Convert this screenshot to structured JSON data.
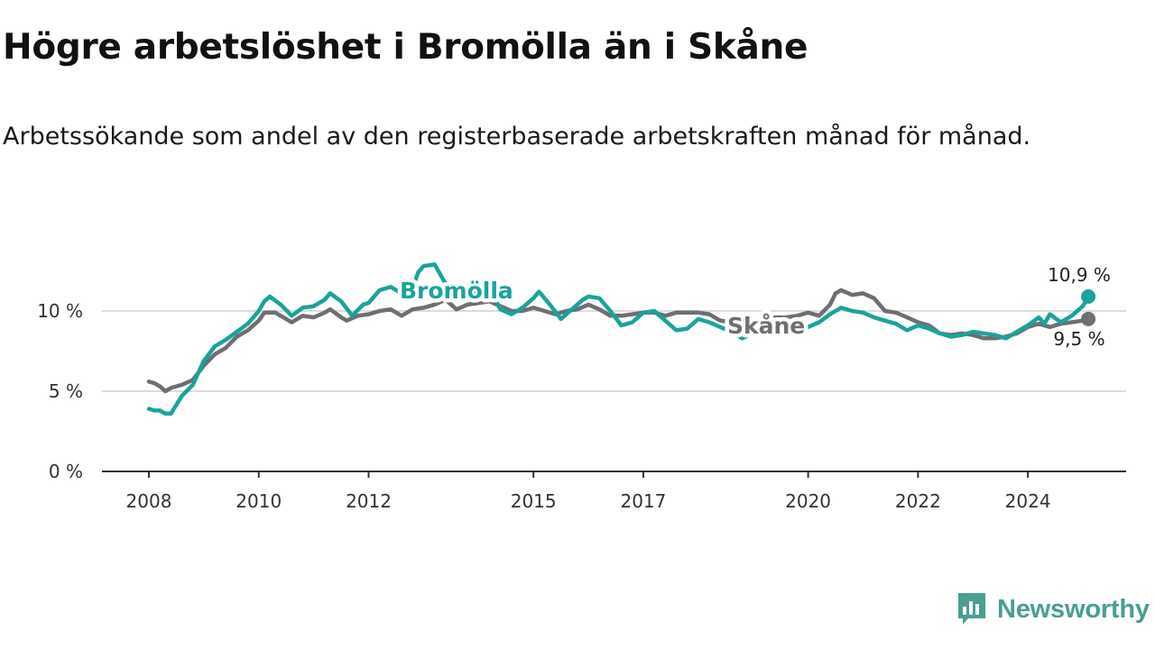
{
  "title": "Högre arbetslöshet i Bromölla än i Skåne",
  "subtitle": "Arbetssökande som andel av den registerbaserade arbetskraften månad för månad.",
  "brand": {
    "name": "Newsworthy",
    "color": "#4a9e92",
    "icon": "newsworthy-logo-icon"
  },
  "chart_data": {
    "type": "line",
    "title": "Högre arbetslöshet i Bromölla än i Skåne",
    "subtitle": "Arbetssökande som andel av den registerbaserade arbetskraften månad för månad.",
    "xlabel": "",
    "ylabel": "",
    "x_range": [
      2008,
      2025.7
    ],
    "ylim": [
      0,
      12
    ],
    "x_ticks": [
      {
        "value": 2008,
        "label": "2008"
      },
      {
        "value": 2010,
        "label": "2010"
      },
      {
        "value": 2012,
        "label": "2012"
      },
      {
        "value": 2015,
        "label": "2015"
      },
      {
        "value": 2017,
        "label": "2017"
      },
      {
        "value": 2020,
        "label": "2020"
      },
      {
        "value": 2022,
        "label": "2022"
      },
      {
        "value": 2024,
        "label": "2024"
      }
    ],
    "y_ticks": [
      {
        "value": 0,
        "label": "0 %"
      },
      {
        "value": 5,
        "label": "5 %"
      },
      {
        "value": 10,
        "label": "10 %"
      }
    ],
    "grid": true,
    "series": [
      {
        "name": "Skåne",
        "color": "#6e6e73",
        "end_label": "9,5 %",
        "points": [
          [
            2008.0,
            5.6
          ],
          [
            2008.1,
            5.5
          ],
          [
            2008.2,
            5.3
          ],
          [
            2008.3,
            5.0
          ],
          [
            2008.4,
            5.2
          ],
          [
            2008.6,
            5.4
          ],
          [
            2008.8,
            5.7
          ],
          [
            2009.0,
            6.6
          ],
          [
            2009.2,
            7.3
          ],
          [
            2009.4,
            7.7
          ],
          [
            2009.6,
            8.4
          ],
          [
            2009.8,
            8.8
          ],
          [
            2010.0,
            9.4
          ],
          [
            2010.1,
            9.9
          ],
          [
            2010.3,
            9.9
          ],
          [
            2010.5,
            9.5
          ],
          [
            2010.6,
            9.3
          ],
          [
            2010.8,
            9.7
          ],
          [
            2011.0,
            9.6
          ],
          [
            2011.2,
            9.9
          ],
          [
            2011.3,
            10.1
          ],
          [
            2011.5,
            9.6
          ],
          [
            2011.6,
            9.4
          ],
          [
            2011.8,
            9.7
          ],
          [
            2012.0,
            9.8
          ],
          [
            2012.2,
            10.0
          ],
          [
            2012.4,
            10.1
          ],
          [
            2012.6,
            9.7
          ],
          [
            2012.8,
            10.1
          ],
          [
            2013.0,
            10.2
          ],
          [
            2013.2,
            10.4
          ],
          [
            2013.4,
            10.7
          ],
          [
            2013.6,
            10.1
          ],
          [
            2013.8,
            10.4
          ],
          [
            2014.0,
            10.5
          ],
          [
            2014.2,
            10.6
          ],
          [
            2014.4,
            10.3
          ],
          [
            2014.6,
            10.0
          ],
          [
            2014.8,
            10.0
          ],
          [
            2015.0,
            10.2
          ],
          [
            2015.2,
            10.0
          ],
          [
            2015.4,
            9.8
          ],
          [
            2015.6,
            10.0
          ],
          [
            2015.8,
            10.1
          ],
          [
            2016.0,
            10.4
          ],
          [
            2016.2,
            10.1
          ],
          [
            2016.4,
            9.7
          ],
          [
            2016.6,
            9.7
          ],
          [
            2016.8,
            9.8
          ],
          [
            2017.0,
            9.9
          ],
          [
            2017.2,
            9.9
          ],
          [
            2017.4,
            9.7
          ],
          [
            2017.6,
            9.9
          ],
          [
            2017.8,
            9.9
          ],
          [
            2018.0,
            9.9
          ],
          [
            2018.2,
            9.8
          ],
          [
            2018.4,
            9.4
          ],
          [
            2018.6,
            9.3
          ],
          [
            2018.8,
            9.4
          ],
          [
            2019.0,
            9.3
          ],
          [
            2019.2,
            9.4
          ],
          [
            2019.4,
            9.6
          ],
          [
            2019.6,
            9.6
          ],
          [
            2019.8,
            9.7
          ],
          [
            2020.0,
            9.9
          ],
          [
            2020.2,
            9.7
          ],
          [
            2020.4,
            10.4
          ],
          [
            2020.5,
            11.1
          ],
          [
            2020.6,
            11.3
          ],
          [
            2020.8,
            11.0
          ],
          [
            2021.0,
            11.1
          ],
          [
            2021.2,
            10.8
          ],
          [
            2021.4,
            10.0
          ],
          [
            2021.6,
            9.9
          ],
          [
            2021.8,
            9.6
          ],
          [
            2022.0,
            9.3
          ],
          [
            2022.2,
            9.1
          ],
          [
            2022.4,
            8.6
          ],
          [
            2022.6,
            8.5
          ],
          [
            2022.8,
            8.6
          ],
          [
            2023.0,
            8.5
          ],
          [
            2023.2,
            8.3
          ],
          [
            2023.4,
            8.3
          ],
          [
            2023.6,
            8.4
          ],
          [
            2023.8,
            8.6
          ],
          [
            2024.0,
            9.0
          ],
          [
            2024.2,
            9.2
          ],
          [
            2024.4,
            9.0
          ],
          [
            2024.6,
            9.2
          ],
          [
            2024.8,
            9.3
          ],
          [
            2025.0,
            9.4
          ],
          [
            2025.1,
            9.5
          ]
        ]
      },
      {
        "name": "Bromölla",
        "color": "#1aa39a",
        "end_label": "10,9 %",
        "points": [
          [
            2008.0,
            3.9
          ],
          [
            2008.1,
            3.8
          ],
          [
            2008.2,
            3.8
          ],
          [
            2008.3,
            3.6
          ],
          [
            2008.4,
            3.6
          ],
          [
            2008.6,
            4.7
          ],
          [
            2008.8,
            5.4
          ],
          [
            2009.0,
            6.9
          ],
          [
            2009.2,
            7.8
          ],
          [
            2009.4,
            8.2
          ],
          [
            2009.6,
            8.7
          ],
          [
            2009.8,
            9.2
          ],
          [
            2010.0,
            10.0
          ],
          [
            2010.1,
            10.6
          ],
          [
            2010.2,
            10.9
          ],
          [
            2010.4,
            10.4
          ],
          [
            2010.6,
            9.7
          ],
          [
            2010.8,
            10.2
          ],
          [
            2011.0,
            10.3
          ],
          [
            2011.2,
            10.7
          ],
          [
            2011.3,
            11.1
          ],
          [
            2011.5,
            10.6
          ],
          [
            2011.7,
            9.7
          ],
          [
            2011.9,
            10.4
          ],
          [
            2012.0,
            10.5
          ],
          [
            2012.2,
            11.3
          ],
          [
            2012.4,
            11.5
          ],
          [
            2012.6,
            11.1
          ],
          [
            2012.8,
            11.4
          ],
          [
            2012.9,
            12.4
          ],
          [
            2013.0,
            12.8
          ],
          [
            2013.2,
            12.9
          ],
          [
            2013.4,
            11.7
          ],
          [
            2013.6,
            11.5
          ],
          [
            2013.8,
            11.0
          ],
          [
            2014.0,
            11.2
          ],
          [
            2014.2,
            11.4
          ],
          [
            2014.4,
            10.1
          ],
          [
            2014.6,
            9.8
          ],
          [
            2014.8,
            10.2
          ],
          [
            2015.0,
            10.8
          ],
          [
            2015.1,
            11.2
          ],
          [
            2015.3,
            10.4
          ],
          [
            2015.5,
            9.5
          ],
          [
            2015.7,
            10.1
          ],
          [
            2015.9,
            10.7
          ],
          [
            2016.0,
            10.9
          ],
          [
            2016.2,
            10.8
          ],
          [
            2016.4,
            10.0
          ],
          [
            2016.6,
            9.1
          ],
          [
            2016.8,
            9.3
          ],
          [
            2017.0,
            9.9
          ],
          [
            2017.2,
            10.0
          ],
          [
            2017.4,
            9.4
          ],
          [
            2017.6,
            8.8
          ],
          [
            2017.8,
            8.9
          ],
          [
            2018.0,
            9.5
          ],
          [
            2018.2,
            9.3
          ],
          [
            2018.4,
            9.0
          ],
          [
            2018.6,
            8.7
          ],
          [
            2018.8,
            8.3
          ],
          [
            2019.0,
            8.6
          ],
          [
            2019.2,
            8.9
          ],
          [
            2019.4,
            9.2
          ],
          [
            2019.6,
            9.1
          ],
          [
            2019.8,
            9.4
          ],
          [
            2020.0,
            9.0
          ],
          [
            2020.2,
            9.3
          ],
          [
            2020.4,
            9.8
          ],
          [
            2020.6,
            10.2
          ],
          [
            2020.8,
            10.0
          ],
          [
            2021.0,
            9.9
          ],
          [
            2021.2,
            9.6
          ],
          [
            2021.4,
            9.4
          ],
          [
            2021.6,
            9.2
          ],
          [
            2021.8,
            8.8
          ],
          [
            2022.0,
            9.1
          ],
          [
            2022.2,
            8.9
          ],
          [
            2022.4,
            8.6
          ],
          [
            2022.6,
            8.4
          ],
          [
            2022.8,
            8.5
          ],
          [
            2023.0,
            8.7
          ],
          [
            2023.2,
            8.6
          ],
          [
            2023.4,
            8.5
          ],
          [
            2023.6,
            8.3
          ],
          [
            2023.8,
            8.7
          ],
          [
            2024.0,
            9.1
          ],
          [
            2024.2,
            9.6
          ],
          [
            2024.3,
            9.2
          ],
          [
            2024.4,
            9.8
          ],
          [
            2024.6,
            9.3
          ],
          [
            2024.8,
            9.7
          ],
          [
            2025.0,
            10.3
          ],
          [
            2025.1,
            10.9
          ]
        ]
      }
    ]
  }
}
